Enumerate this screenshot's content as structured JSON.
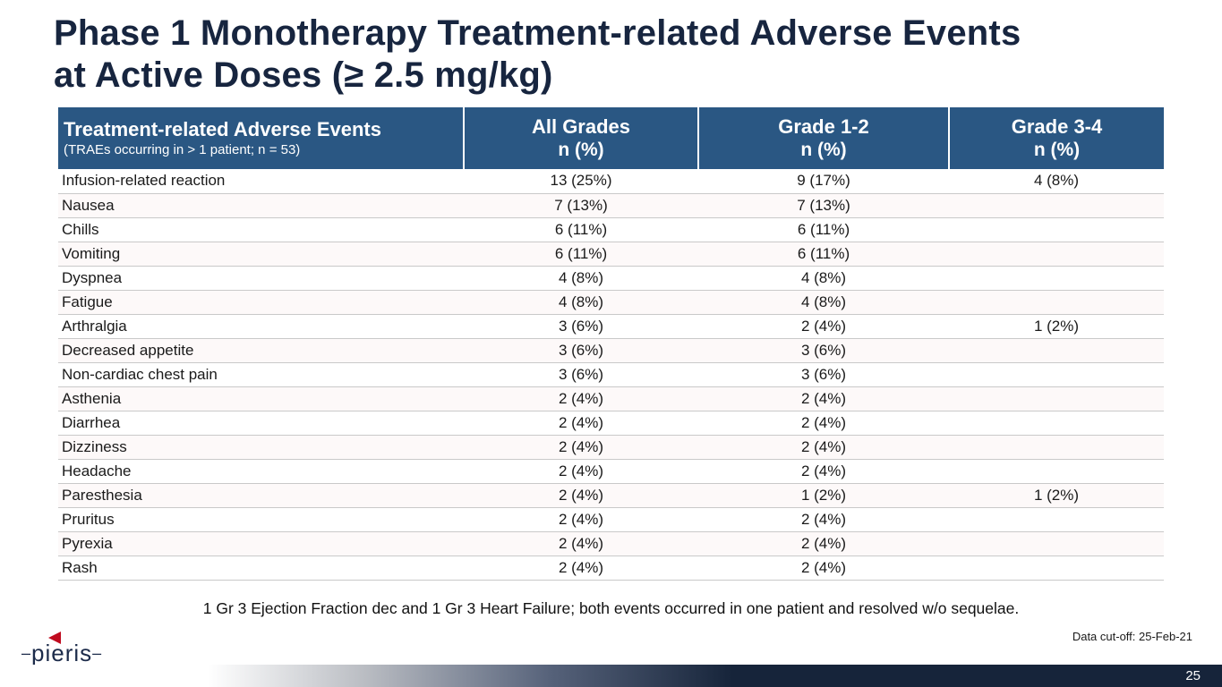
{
  "slide": {
    "title_line1": "Phase 1 Monotherapy Treatment-related Adverse Events",
    "title_line2": "at Active Doses (≥ 2.5 mg/kg)",
    "footnote": "1 Gr 3 Ejection Fraction dec and 1 Gr 3 Heart Failure; both events occurred in one patient and resolved w/o sequelae.",
    "data_cutoff": "Data cut-off: 25-Feb-21",
    "page_number": "25",
    "logo_text": "pieris",
    "logo_dash": "–"
  },
  "table": {
    "header": {
      "col1_title": "Treatment-related Adverse Events",
      "col1_subtitle": "(TRAEs occurring in > 1 patient; n = 53)",
      "col2_title": "All Grades",
      "col3_title": "Grade 1-2",
      "col4_title": "Grade 3-4",
      "n_label": "n (%)"
    },
    "rows": [
      {
        "event": "Infusion-related reaction",
        "all": "13 (25%)",
        "g12": "9 (17%)",
        "g34": "4 (8%)"
      },
      {
        "event": "Nausea",
        "all": "7 (13%)",
        "g12": "7 (13%)",
        "g34": ""
      },
      {
        "event": "Chills",
        "all": "6 (11%)",
        "g12": "6 (11%)",
        "g34": ""
      },
      {
        "event": "Vomiting",
        "all": "6 (11%)",
        "g12": "6 (11%)",
        "g34": ""
      },
      {
        "event": "Dyspnea",
        "all": "4 (8%)",
        "g12": "4 (8%)",
        "g34": ""
      },
      {
        "event": "Fatigue",
        "all": "4 (8%)",
        "g12": "4 (8%)",
        "g34": ""
      },
      {
        "event": "Arthralgia",
        "all": "3 (6%)",
        "g12": "2 (4%)",
        "g34": "1 (2%)"
      },
      {
        "event": "Decreased appetite",
        "all": "3 (6%)",
        "g12": "3 (6%)",
        "g34": ""
      },
      {
        "event": "Non-cardiac chest pain",
        "all": "3 (6%)",
        "g12": "3 (6%)",
        "g34": ""
      },
      {
        "event": "Asthenia",
        "all": "2 (4%)",
        "g12": "2 (4%)",
        "g34": ""
      },
      {
        "event": "Diarrhea",
        "all": "2 (4%)",
        "g12": "2 (4%)",
        "g34": ""
      },
      {
        "event": "Dizziness",
        "all": "2 (4%)",
        "g12": "2 (4%)",
        "g34": ""
      },
      {
        "event": "Headache",
        "all": "2 (4%)",
        "g12": "2 (4%)",
        "g34": ""
      },
      {
        "event": "Paresthesia",
        "all": "2 (4%)",
        "g12": "1 (2%)",
        "g34": "1 (2%)"
      },
      {
        "event": "Pruritus",
        "all": "2 (4%)",
        "g12": "2 (4%)",
        "g34": ""
      },
      {
        "event": "Pyrexia",
        "all": "2 (4%)",
        "g12": "2 (4%)",
        "g34": ""
      },
      {
        "event": "Rash",
        "all": "2 (4%)",
        "g12": "2 (4%)",
        "g34": ""
      }
    ]
  },
  "colors": {
    "header_bg": "#2a5783",
    "title_text": "#17253f",
    "accent_red": "#c00b1f",
    "footer_bar_dark": "#16243a",
    "row_separator": "#c9c9c9"
  }
}
